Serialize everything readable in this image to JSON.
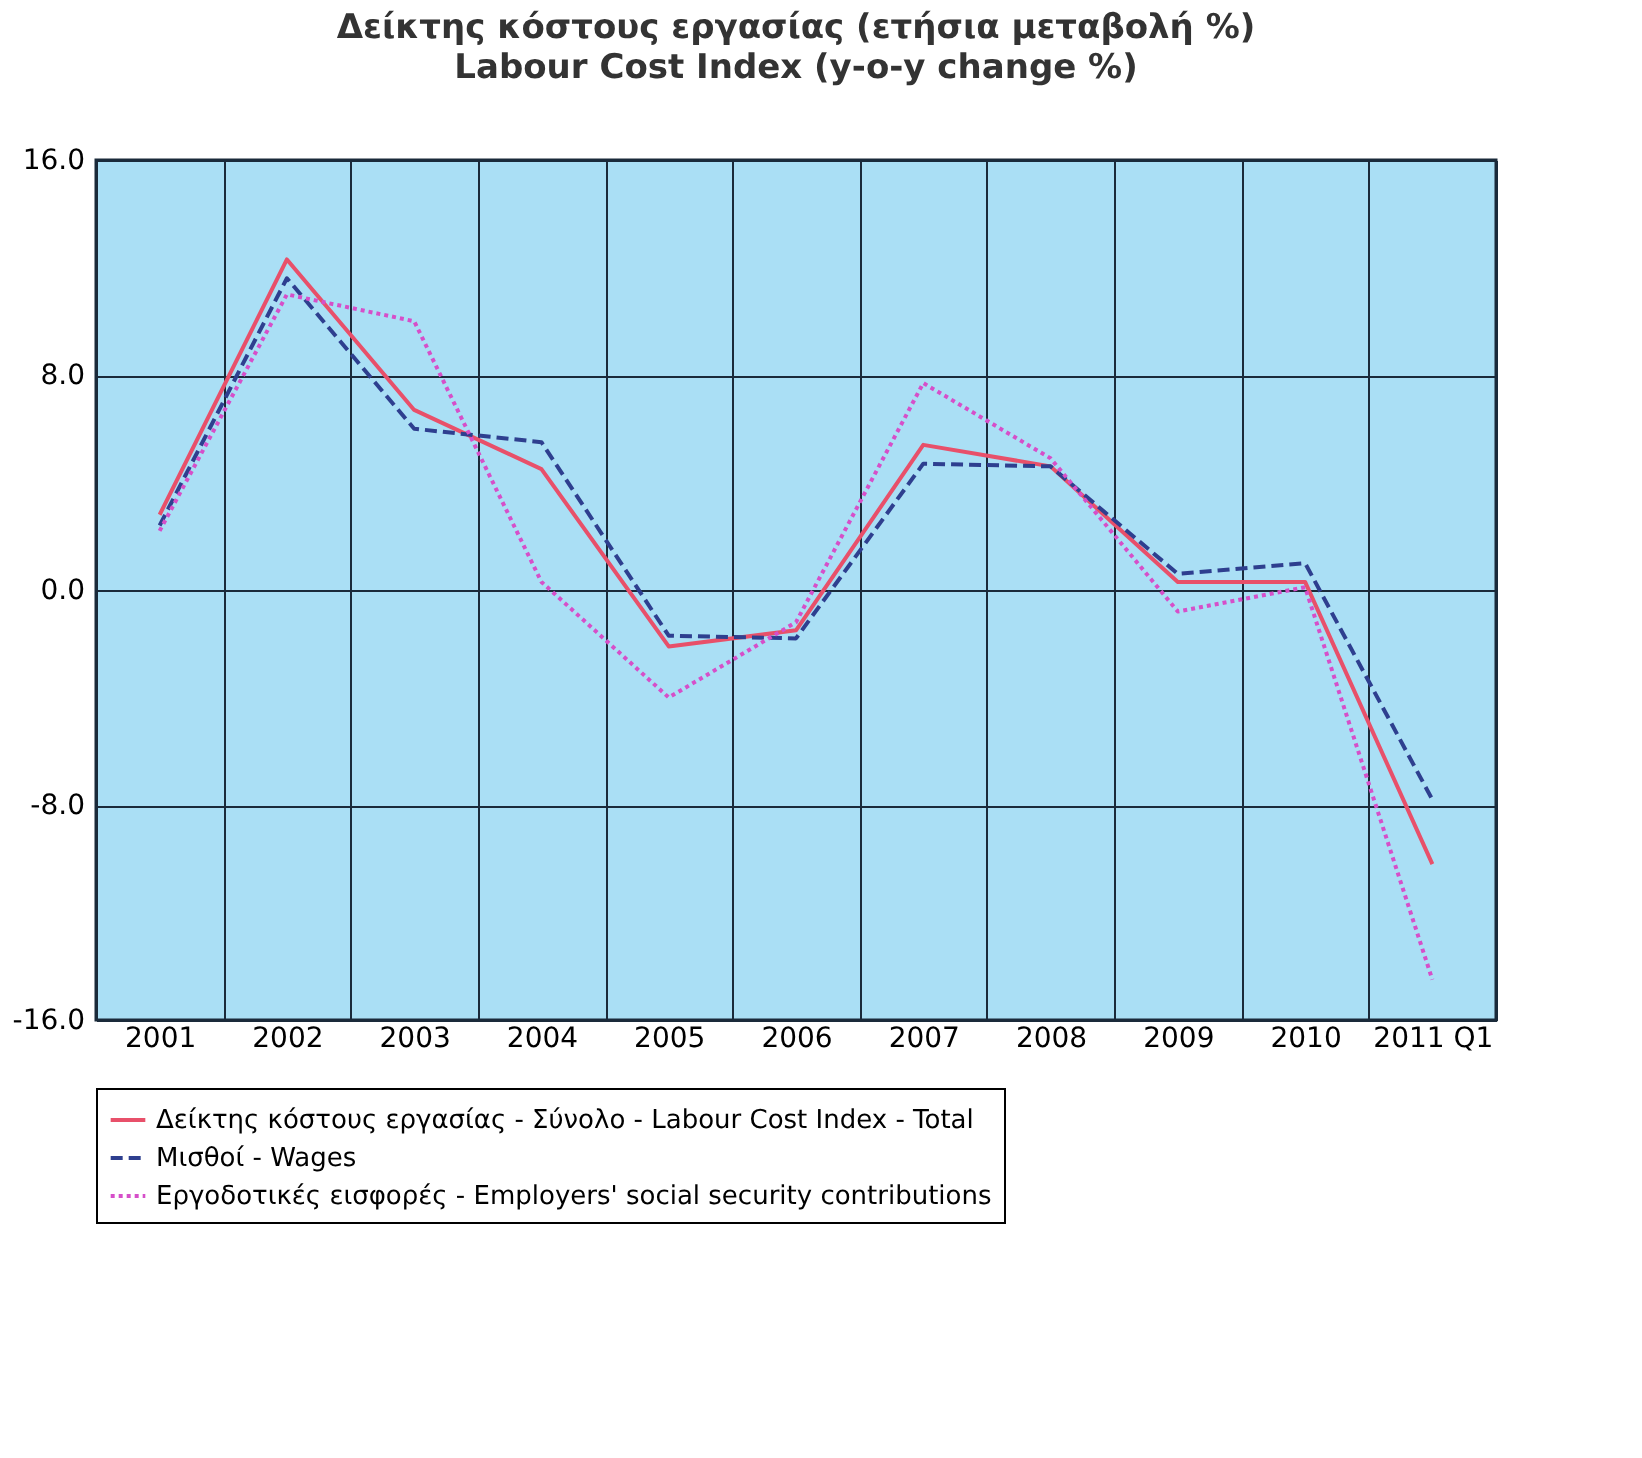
{
  "chart_data": {
    "type": "line",
    "title": "Δείκτης κόστους εργασίας (ετήσια μεταβολή %)",
    "subtitle": "Labour Cost Index (y-o-y change %)",
    "categories": [
      "2001",
      "2002",
      "2003",
      "2004",
      "2005",
      "2006",
      "2007",
      "2008",
      "2009",
      "2010",
      "2011 Q1"
    ],
    "series": [
      {
        "name": "Δείκτης κόστους εργασίας - Σύνολο - Labour Cost Index - Total",
        "color": "#e8506a",
        "line_style": "solid",
        "values": [
          2.8,
          12.3,
          6.7,
          4.5,
          -2.1,
          -1.5,
          5.4,
          4.6,
          0.3,
          0.3,
          -10.2
        ]
      },
      {
        "name": "Μισθοί - Wages",
        "color": "#2e3f8f",
        "line_style": "dashed",
        "values": [
          2.4,
          11.6,
          6.0,
          5.5,
          -1.7,
          -1.8,
          4.7,
          4.6,
          0.6,
          1.0,
          -7.8
        ]
      },
      {
        "name": "Εργοδοτικές εισφορές - Employers' social security contributions",
        "color": "#d64fc9",
        "line_style": "dotted",
        "values": [
          2.2,
          11.0,
          10.0,
          0.3,
          -4.0,
          -1.2,
          7.7,
          4.9,
          -0.8,
          0.1,
          -14.5
        ]
      }
    ],
    "ylim": [
      -16,
      16
    ],
    "yticks": [
      {
        "value": -16,
        "label": "-16.0"
      },
      {
        "value": -8,
        "label": "-8.0"
      },
      {
        "value": 0,
        "label": "0.0"
      },
      {
        "value": 8,
        "label": "8.0"
      },
      {
        "value": 16,
        "label": "16.0"
      }
    ],
    "grid": true,
    "legend": "bottom",
    "marker": "none"
  }
}
